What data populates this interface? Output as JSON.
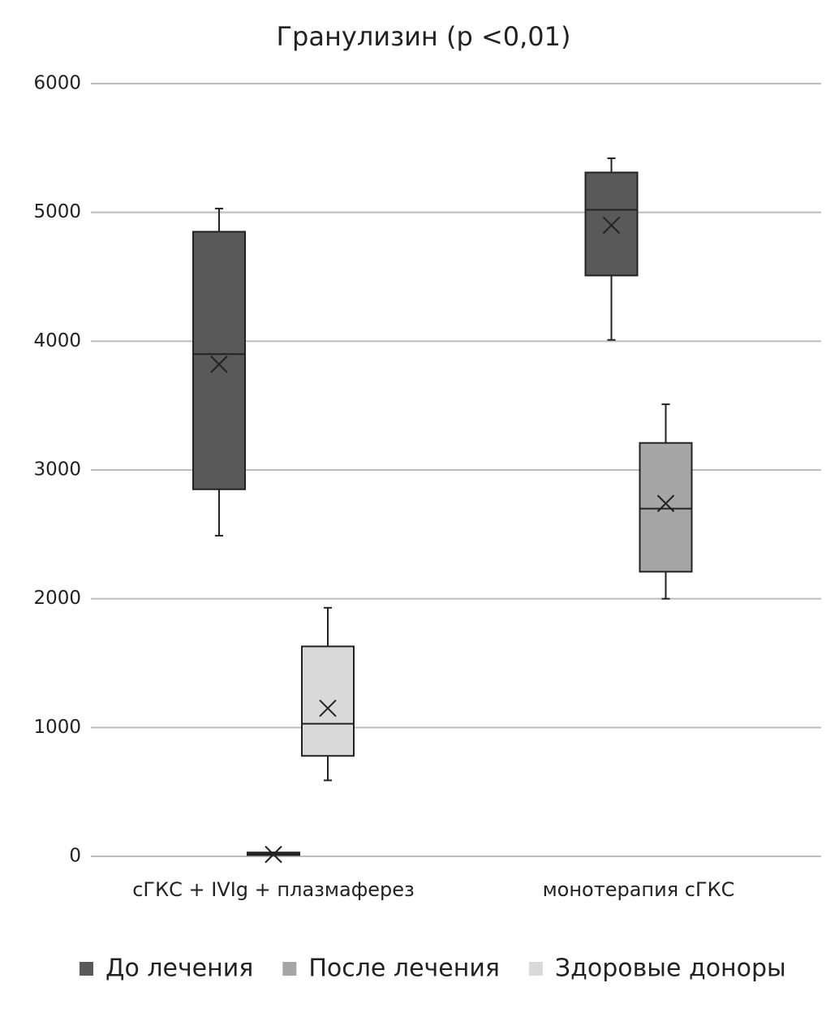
{
  "chart_data": {
    "type": "box",
    "title": "Гранулизин (p <0,01)",
    "categories": [
      "сГКС + IVIg + плазмаферез",
      "монотерапия сГКС"
    ],
    "series": [
      {
        "name": "До лечения",
        "color": "#595959",
        "min": [
          2490,
          4010
        ],
        "q1": [
          2850,
          4510
        ],
        "median": [
          3900,
          5020
        ],
        "q3": [
          4850,
          5310
        ],
        "max": [
          5030,
          5420
        ],
        "mean": [
          3820,
          4900
        ]
      },
      {
        "name": "После лечения",
        "color": "#a6a6a6",
        "min": [
          10,
          2000
        ],
        "q1": [
          10,
          2210
        ],
        "median": [
          20,
          2700
        ],
        "q3": [
          30,
          3210
        ],
        "max": [
          30,
          3510
        ],
        "mean": [
          15,
          2740
        ]
      },
      {
        "name": "Здоровые доноры",
        "color": "#d9d9d9",
        "min": [
          590,
          null
        ],
        "q1": [
          780,
          null
        ],
        "median": [
          1030,
          null
        ],
        "q3": [
          1630,
          null
        ],
        "max": [
          1930,
          null
        ],
        "mean": [
          1150,
          null
        ]
      }
    ],
    "ylim": [
      0,
      6000
    ],
    "yticks": [
      0,
      1000,
      2000,
      3000,
      4000,
      5000,
      6000
    ],
    "grid": true,
    "legend": "bottom"
  }
}
